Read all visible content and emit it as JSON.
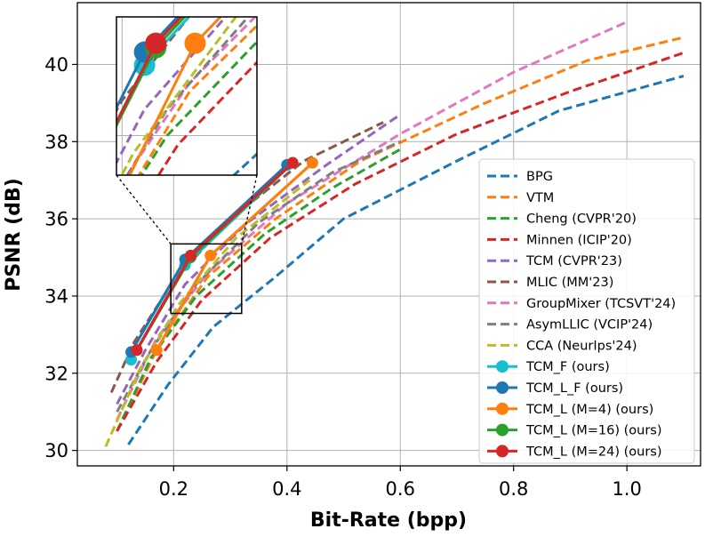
{
  "chart_data": {
    "type": "line",
    "xlabel": "Bit-Rate (bpp)",
    "ylabel": "PSNR (dB)",
    "xlim": [
      0.03,
      1.13
    ],
    "ylim": [
      29.6,
      41.6
    ],
    "xticks": [
      0.2,
      0.4,
      0.6,
      0.8,
      1.0
    ],
    "xtick_labels": [
      "0.2",
      "0.4",
      "0.6",
      "0.8",
      "1.0"
    ],
    "yticks": [
      30,
      32,
      34,
      36,
      38,
      40
    ],
    "ytick_labels": [
      "30",
      "32",
      "34",
      "36",
      "38",
      "40"
    ],
    "grid": true,
    "legend_position": "lower-right",
    "inset": {
      "xlim": [
        0.195,
        0.32
      ],
      "ylim": [
        33.55,
        35.35
      ],
      "placement": "upper-left"
    },
    "series": [
      {
        "name": "BPG",
        "color": "#1f77b4",
        "style": "dashed",
        "x": [
          0.12,
          0.19,
          0.27,
          0.38,
          0.5,
          0.7,
          0.88,
          1.1
        ],
        "y": [
          30.15,
          31.7,
          33.2,
          34.5,
          36.0,
          37.5,
          38.8,
          39.7
        ]
      },
      {
        "name": "VTM",
        "color": "#ff7f0e",
        "style": "dashed",
        "x": [
          0.1,
          0.17,
          0.26,
          0.38,
          0.53,
          0.75,
          0.93,
          1.1
        ],
        "y": [
          30.5,
          32.6,
          34.5,
          36.0,
          37.5,
          39.0,
          40.1,
          40.7
        ]
      },
      {
        "name": "Cheng (CVPR'20)",
        "color": "#2ca02c",
        "style": "dashed",
        "x": [
          0.1,
          0.16,
          0.24,
          0.36,
          0.48,
          0.6
        ],
        "y": [
          30.5,
          32.4,
          34.0,
          35.6,
          36.8,
          37.8
        ]
      },
      {
        "name": "Minnen (ICIP'20)",
        "color": "#d62728",
        "style": "dashed",
        "x": [
          0.1,
          0.17,
          0.25,
          0.37,
          0.52,
          0.7,
          0.9,
          1.1
        ],
        "y": [
          30.5,
          32.3,
          33.9,
          35.5,
          36.9,
          38.2,
          39.3,
          40.3
        ]
      },
      {
        "name": "TCM (CVPR'23)",
        "color": "#9467bd",
        "style": "dashed",
        "x": [
          0.1,
          0.15,
          0.22,
          0.33,
          0.47,
          0.6
        ],
        "y": [
          31.2,
          32.6,
          34.3,
          35.9,
          37.4,
          38.7
        ]
      },
      {
        "name": "MLIC (MM'23)",
        "color": "#8c564b",
        "style": "dashed",
        "x": [
          0.09,
          0.13,
          0.2,
          0.3,
          0.43,
          0.57
        ],
        "y": [
          31.5,
          32.8,
          34.4,
          36.0,
          37.5,
          38.5
        ]
      },
      {
        "name": "GroupMixer (TCSVT'24)",
        "color": "#e377c2",
        "style": "dashed",
        "x": [
          0.1,
          0.17,
          0.26,
          0.4,
          0.6,
          0.8,
          1.0
        ],
        "y": [
          30.8,
          32.9,
          34.6,
          36.4,
          38.2,
          39.8,
          41.1
        ]
      },
      {
        "name": "AsymLLIC (VCIP'24)",
        "color": "#7f7f7f",
        "style": "dashed",
        "x": [
          0.1,
          0.16,
          0.24,
          0.35,
          0.48,
          0.6
        ],
        "y": [
          31.0,
          32.6,
          34.3,
          35.9,
          37.2,
          38.0
        ]
      },
      {
        "name": "CCA (NeurIps'24)",
        "color": "#bcbd22",
        "style": "dashed",
        "x": [
          0.08,
          0.14,
          0.21,
          0.31,
          0.44
        ],
        "y": [
          30.1,
          32.1,
          33.8,
          35.5,
          37.0
        ]
      },
      {
        "name": "TCM_F (ours)",
        "color": "#17becf",
        "style": "solid",
        "x": [
          0.125,
          0.22,
          0.41
        ],
        "y": [
          32.35,
          34.8,
          37.45
        ]
      },
      {
        "name": "TCM_L_F (ours)",
        "color": "#1f77b4",
        "style": "solid",
        "x": [
          0.125,
          0.22,
          0.4
        ],
        "y": [
          32.55,
          34.95,
          37.4
        ]
      },
      {
        "name": "TCM_L (M=4) (ours)",
        "color": "#ff7f0e",
        "style": "solid",
        "x": [
          0.17,
          0.265,
          0.445
        ],
        "y": [
          32.6,
          35.05,
          37.45
        ]
      },
      {
        "name": "TCM_L (M=16) (ours)",
        "color": "#2ca02c",
        "style": "solid",
        "x": [
          0.135,
          0.23,
          0.41
        ],
        "y": [
          32.6,
          35.0,
          37.45
        ]
      },
      {
        "name": "TCM_L (M=24) (ours)",
        "color": "#d62728",
        "style": "solid",
        "x": [
          0.135,
          0.23,
          0.41
        ],
        "y": [
          32.6,
          35.05,
          37.45
        ]
      }
    ]
  }
}
